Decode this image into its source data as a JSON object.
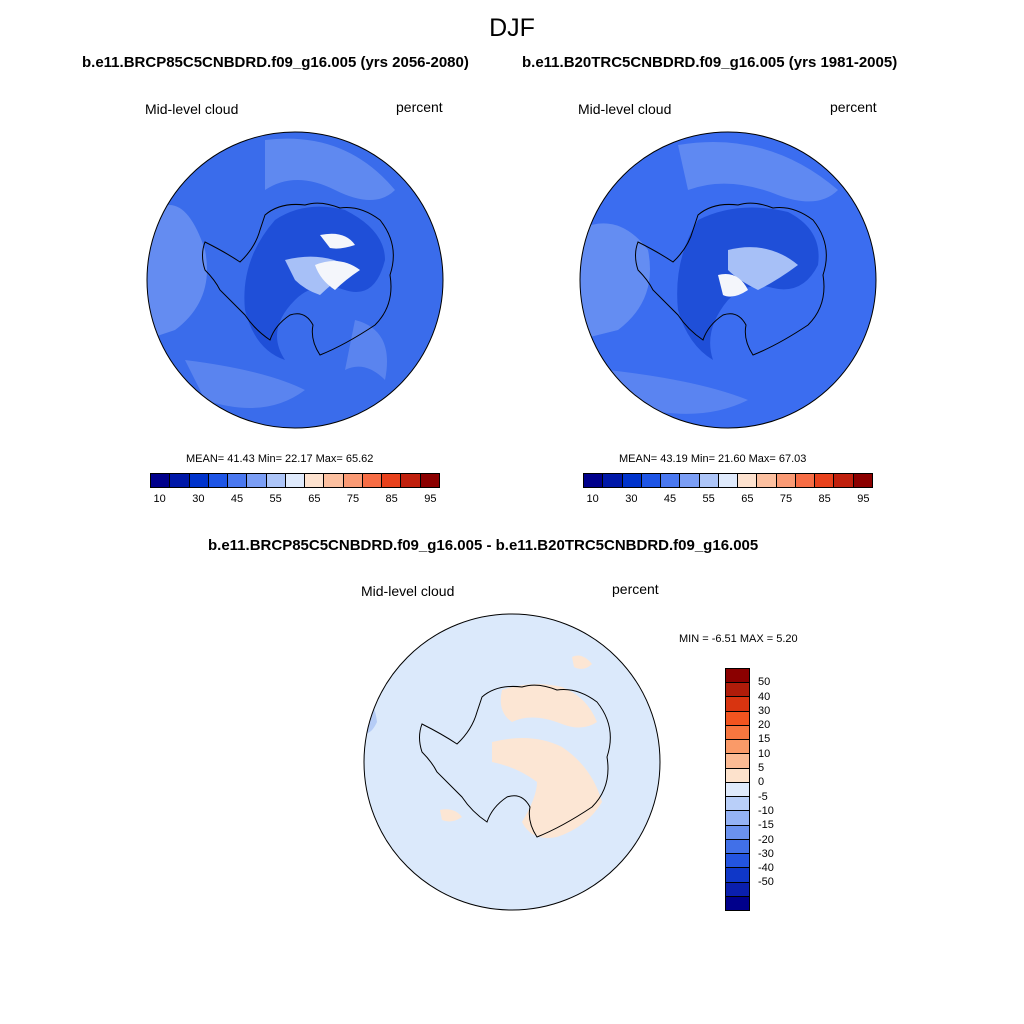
{
  "figure": {
    "season": "DJF",
    "left_title": "b.e11.BRCP85C5CNBDRD.f09_g16.005 (yrs 2056-2080)",
    "right_title": "b.e11.B20TRC5CNBDRD.f09_g16.005 (yrs 1981-2005)",
    "diff_title": "b.e11.BRCP85C5CNBDRD.f09_g16.005 - b.e11.B20TRC5CNBDRD.f09_g16.005"
  },
  "panels": {
    "left": {
      "variable": "Mid-level cloud",
      "units": "percent",
      "stats": "MEAN=  41.43  Min=  22.17  Max=  65.62"
    },
    "right": {
      "variable": "Mid-level cloud",
      "units": "percent",
      "stats": "MEAN=  43.19  Min=  21.60  Max=  67.03"
    },
    "diff": {
      "variable": "Mid-level cloud",
      "units": "percent",
      "stats": "MIN =  -6.51 MAX =   5.20"
    }
  },
  "colorbars": {
    "field": {
      "colors": [
        "#00008b",
        "#0018a8",
        "#0033cc",
        "#1e55e6",
        "#4a78f0",
        "#7b9ef5",
        "#adc5f8",
        "#dfeafc",
        "#fde2cf",
        "#fcc0a0",
        "#fa9a74",
        "#f76d45",
        "#e8411c",
        "#c0200d",
        "#8b0000"
      ],
      "tick_labels": [
        "10",
        "30",
        "45",
        "55",
        "65",
        "75",
        "85",
        "95"
      ]
    },
    "diff": {
      "colors": [
        "#8b0000",
        "#b01c0a",
        "#d83410",
        "#f2541f",
        "#f7763f",
        "#fa9a68",
        "#fcbb94",
        "#fde2cc",
        "#dfeafc",
        "#b9cff9",
        "#94b2f5",
        "#6b92ef",
        "#4170e8",
        "#2354e0",
        "#0f37c8",
        "#0a1fae",
        "#00008b"
      ],
      "tick_labels": [
        "50",
        "40",
        "30",
        "20",
        "15",
        "10",
        "5",
        "0",
        "-5",
        "-10",
        "-15",
        "-20",
        "-30",
        "-40",
        "-50"
      ]
    }
  },
  "map_colors": {
    "ocean_left": "#3a6ceb",
    "ocean_right": "#3b6df0",
    "ocean_light": "#6f95f2",
    "interior_dark": "#1f4fd8",
    "interior_light": "#a7c0f7",
    "interior_white": "#f4f6fb",
    "diff_background": "#dbe9fb",
    "diff_positive": "#fce6d4",
    "diff_negative": "#b5ccf6",
    "coast": "#000000"
  }
}
